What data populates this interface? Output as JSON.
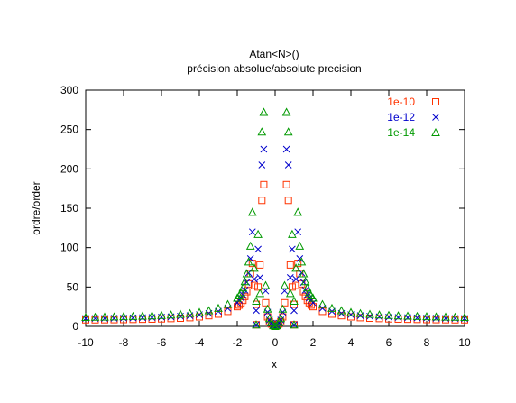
{
  "chart_data": {
    "type": "scatter",
    "title": "Atan<N>()",
    "subtitle": "précision absolue/absolute precision",
    "xlabel": "x",
    "ylabel": "ordre/order",
    "xlim": [
      -10,
      10
    ],
    "ylim": [
      0,
      300
    ],
    "x_ticks": [
      -10,
      -8,
      -6,
      -4,
      -2,
      0,
      2,
      4,
      6,
      8,
      10
    ],
    "y_ticks": [
      0,
      50,
      100,
      150,
      200,
      250,
      300
    ],
    "grid": false,
    "legend_position": "top-right",
    "series": [
      {
        "name": "1e-10",
        "marker": "square",
        "color": "#ff3300",
        "points": [
          [
            -10,
            8.3
          ],
          [
            -9.5,
            8.3
          ],
          [
            -9,
            8.4
          ],
          [
            -8.5,
            8.5
          ],
          [
            -8,
            8.6
          ],
          [
            -7.5,
            8.8
          ],
          [
            -7,
            9
          ],
          [
            -6.5,
            9.2
          ],
          [
            -6,
            9.5
          ],
          [
            -5.5,
            9.9
          ],
          [
            -5,
            10.3
          ],
          [
            -4.5,
            11
          ],
          [
            -4,
            12
          ],
          [
            -3.5,
            13.5
          ],
          [
            -3,
            15.5
          ],
          [
            -2.5,
            19
          ],
          [
            -2,
            25
          ],
          [
            -1.9,
            27
          ],
          [
            -1.8,
            30
          ],
          [
            -1.7,
            33
          ],
          [
            -1.6,
            38
          ],
          [
            -1.5,
            44
          ],
          [
            -1.4,
            54
          ],
          [
            -1.3,
            67
          ],
          [
            -1.2,
            80
          ],
          [
            -1.1,
            52
          ],
          [
            -1.0,
            28
          ],
          [
            -1.0,
            2
          ],
          [
            -0.9,
            50
          ],
          [
            -0.8,
            78
          ],
          [
            -0.7,
            160
          ],
          [
            -0.6,
            180
          ],
          [
            -0.5,
            30
          ],
          [
            -0.4,
            12
          ],
          [
            -0.3,
            6
          ],
          [
            -0.2,
            3
          ],
          [
            -0.1,
            1
          ],
          [
            0,
            0
          ],
          [
            0.1,
            1
          ],
          [
            0.2,
            3
          ],
          [
            0.3,
            6
          ],
          [
            0.4,
            12
          ],
          [
            0.5,
            30
          ],
          [
            0.6,
            180
          ],
          [
            0.7,
            160
          ],
          [
            0.8,
            78
          ],
          [
            0.9,
            50
          ],
          [
            1.0,
            2
          ],
          [
            1.0,
            28
          ],
          [
            1.1,
            52
          ],
          [
            1.2,
            80
          ],
          [
            1.3,
            67
          ],
          [
            1.4,
            54
          ],
          [
            1.5,
            44
          ],
          [
            1.6,
            38
          ],
          [
            1.7,
            33
          ],
          [
            1.8,
            30
          ],
          [
            1.9,
            27
          ],
          [
            2,
            25
          ],
          [
            2.5,
            19
          ],
          [
            3,
            15.5
          ],
          [
            3.5,
            13.5
          ],
          [
            4,
            12
          ],
          [
            4.5,
            11
          ],
          [
            5,
            10.3
          ],
          [
            5.5,
            9.9
          ],
          [
            6,
            9.5
          ],
          [
            6.5,
            9.2
          ],
          [
            7,
            9
          ],
          [
            7.5,
            8.8
          ],
          [
            8,
            8.6
          ],
          [
            8.5,
            8.5
          ],
          [
            9,
            8.4
          ],
          [
            9.5,
            8.3
          ],
          [
            10,
            8.3
          ]
        ]
      },
      {
        "name": "1e-12",
        "marker": "cross",
        "color": "#0000cc",
        "points": [
          [
            -10,
            10
          ],
          [
            -9.5,
            10.1
          ],
          [
            -9,
            10.2
          ],
          [
            -8.5,
            10.3
          ],
          [
            -8,
            10.5
          ],
          [
            -7.5,
            10.7
          ],
          [
            -7,
            11
          ],
          [
            -6.5,
            11.3
          ],
          [
            -6,
            11.7
          ],
          [
            -5.5,
            12.2
          ],
          [
            -5,
            12.8
          ],
          [
            -4.5,
            13.6
          ],
          [
            -4,
            14.8
          ],
          [
            -3.5,
            16.5
          ],
          [
            -3,
            19
          ],
          [
            -2.5,
            23
          ],
          [
            -2,
            30
          ],
          [
            -1.9,
            33
          ],
          [
            -1.8,
            36
          ],
          [
            -1.7,
            40
          ],
          [
            -1.6,
            46
          ],
          [
            -1.5,
            56
          ],
          [
            -1.4,
            68
          ],
          [
            -1.3,
            86
          ],
          [
            -1.2,
            120
          ],
          [
            -1.1,
            60
          ],
          [
            -1.0,
            20
          ],
          [
            -1.0,
            2
          ],
          [
            -0.9,
            98
          ],
          [
            -0.8,
            62
          ],
          [
            -0.7,
            205
          ],
          [
            -0.6,
            225
          ],
          [
            -0.5,
            45
          ],
          [
            -0.4,
            18
          ],
          [
            -0.3,
            8
          ],
          [
            -0.2,
            4
          ],
          [
            -0.1,
            1
          ],
          [
            0,
            0
          ],
          [
            0.1,
            1
          ],
          [
            0.2,
            4
          ],
          [
            0.3,
            8
          ],
          [
            0.4,
            18
          ],
          [
            0.5,
            45
          ],
          [
            0.6,
            225
          ],
          [
            0.7,
            205
          ],
          [
            0.8,
            62
          ],
          [
            0.9,
            98
          ],
          [
            1.0,
            2
          ],
          [
            1.0,
            20
          ],
          [
            1.1,
            60
          ],
          [
            1.2,
            120
          ],
          [
            1.3,
            86
          ],
          [
            1.4,
            68
          ],
          [
            1.5,
            56
          ],
          [
            1.6,
            46
          ],
          [
            1.7,
            40
          ],
          [
            1.8,
            36
          ],
          [
            1.9,
            33
          ],
          [
            2,
            30
          ],
          [
            2.5,
            23
          ],
          [
            3,
            19
          ],
          [
            3.5,
            16.5
          ],
          [
            4,
            14.8
          ],
          [
            4.5,
            13.6
          ],
          [
            5,
            12.8
          ],
          [
            5.5,
            12.2
          ],
          [
            6,
            11.7
          ],
          [
            6.5,
            11.3
          ],
          [
            7,
            11
          ],
          [
            7.5,
            10.7
          ],
          [
            8,
            10.5
          ],
          [
            8.5,
            10.3
          ],
          [
            9,
            10.2
          ],
          [
            9.5,
            10.1
          ],
          [
            10,
            10
          ]
        ]
      },
      {
        "name": "1e-14",
        "marker": "triangle",
        "color": "#009900",
        "points": [
          [
            -10,
            11.5
          ],
          [
            -9.5,
            11.7
          ],
          [
            -9,
            11.9
          ],
          [
            -8.5,
            12.1
          ],
          [
            -8,
            12.4
          ],
          [
            -7.5,
            12.7
          ],
          [
            -7,
            13.1
          ],
          [
            -6.5,
            13.5
          ],
          [
            -6,
            14
          ],
          [
            -5.5,
            14.6
          ],
          [
            -5,
            15.4
          ],
          [
            -4.5,
            16.4
          ],
          [
            -4,
            17.8
          ],
          [
            -3.5,
            20
          ],
          [
            -3,
            23
          ],
          [
            -2.5,
            28
          ],
          [
            -2,
            36
          ],
          [
            -1.9,
            39
          ],
          [
            -1.8,
            43
          ],
          [
            -1.7,
            49
          ],
          [
            -1.6,
            57
          ],
          [
            -1.5,
            67
          ],
          [
            -1.4,
            82
          ],
          [
            -1.3,
            102
          ],
          [
            -1.2,
            145
          ],
          [
            -1.1,
            74
          ],
          [
            -1.0,
            32
          ],
          [
            -1.0,
            2
          ],
          [
            -0.9,
            117
          ],
          [
            -0.8,
            42
          ],
          [
            -0.7,
            247
          ],
          [
            -0.6,
            272
          ],
          [
            -0.5,
            52
          ],
          [
            -0.4,
            22
          ],
          [
            -0.3,
            10
          ],
          [
            -0.2,
            5
          ],
          [
            -0.1,
            1
          ],
          [
            0,
            0
          ],
          [
            0.1,
            1
          ],
          [
            0.2,
            5
          ],
          [
            0.3,
            10
          ],
          [
            0.4,
            22
          ],
          [
            0.5,
            52
          ],
          [
            0.6,
            272
          ],
          [
            0.7,
            247
          ],
          [
            0.8,
            42
          ],
          [
            0.9,
            117
          ],
          [
            1.0,
            2
          ],
          [
            1.0,
            32
          ],
          [
            1.1,
            74
          ],
          [
            1.2,
            145
          ],
          [
            1.3,
            102
          ],
          [
            1.4,
            82
          ],
          [
            1.5,
            67
          ],
          [
            1.6,
            57
          ],
          [
            1.7,
            49
          ],
          [
            1.8,
            43
          ],
          [
            1.9,
            39
          ],
          [
            2,
            36
          ],
          [
            2.5,
            28
          ],
          [
            3,
            23
          ],
          [
            3.5,
            20
          ],
          [
            4,
            17.8
          ],
          [
            4.5,
            16.4
          ],
          [
            5,
            15.4
          ],
          [
            5.5,
            14.6
          ],
          [
            6,
            14
          ],
          [
            6.5,
            13.5
          ],
          [
            7,
            13.1
          ],
          [
            7.5,
            12.7
          ],
          [
            8,
            12.4
          ],
          [
            8.5,
            12.1
          ],
          [
            9,
            11.9
          ],
          [
            9.5,
            11.7
          ],
          [
            10,
            11.5
          ]
        ]
      }
    ]
  }
}
